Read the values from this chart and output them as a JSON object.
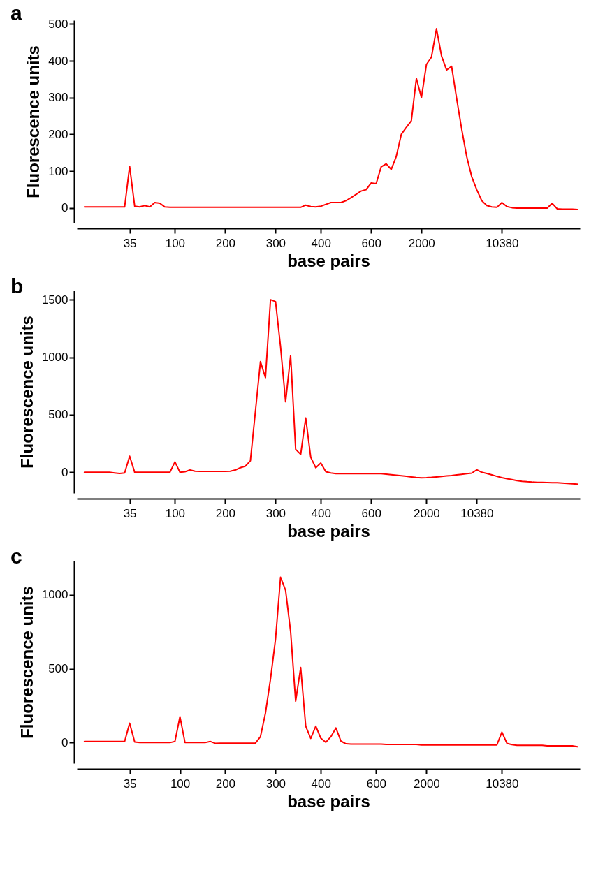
{
  "chart_data": [
    {
      "type": "line",
      "title": "a",
      "xlabel": "base pairs",
      "ylabel": "Fluorescence units",
      "ylim": [
        -40,
        510
      ],
      "yticks": [
        0,
        100,
        200,
        300,
        400,
        500
      ],
      "grid": false,
      "legend": false,
      "marker": "none",
      "line_style": "solid",
      "categories": [
        null,
        null,
        null,
        null,
        null,
        null,
        null,
        null,
        null,
        null,
        "35",
        null,
        null,
        null,
        null,
        null,
        null,
        null,
        null,
        "100",
        null,
        null,
        null,
        null,
        null,
        null,
        null,
        null,
        null,
        "200",
        null,
        null,
        null,
        null,
        null,
        null,
        null,
        null,
        null,
        "300",
        null,
        null,
        null,
        null,
        null,
        null,
        null,
        null,
        "400",
        null,
        null,
        null,
        null,
        null,
        null,
        null,
        null,
        null,
        "600",
        null,
        null,
        null,
        null,
        null,
        null,
        null,
        null,
        null,
        "2000",
        null,
        null,
        null,
        null,
        null,
        null,
        null,
        null,
        null,
        null,
        null,
        null,
        null,
        null,
        null,
        "10380",
        null,
        null,
        null,
        null,
        null,
        null,
        null,
        null,
        null,
        null,
        null,
        null,
        null,
        null,
        null
      ],
      "series": [
        {
          "color": "#ff0000",
          "values": [
            null,
            3,
            3,
            3,
            3,
            3,
            3,
            3,
            3,
            3,
            113,
            5,
            3,
            7,
            3,
            15,
            13,
            3,
            2,
            2,
            2,
            2,
            2,
            2,
            2,
            2,
            2,
            2,
            2,
            2,
            2,
            2,
            2,
            2,
            2,
            2,
            2,
            2,
            2,
            2,
            2,
            2,
            2,
            2,
            2,
            8,
            4,
            3,
            5,
            10,
            15,
            15,
            15,
            20,
            28,
            37,
            46,
            50,
            68,
            66,
            112,
            120,
            105,
            140,
            200,
            219,
            237,
            352,
            300,
            390,
            410,
            487,
            413,
            375,
            385,
            298,
            215,
            140,
            85,
            50,
            20,
            7,
            3,
            2,
            15,
            4,
            1,
            0,
            0,
            0,
            0,
            0,
            0,
            0,
            13,
            -2,
            -3,
            -3,
            -3,
            -4
          ]
        }
      ]
    },
    {
      "type": "line",
      "title": "b",
      "xlabel": "base pairs",
      "ylabel": "Fluorescence units",
      "ylim": [
        -180,
        1580
      ],
      "yticks": [
        0,
        500,
        1000,
        1500
      ],
      "grid": false,
      "legend": false,
      "marker": "none",
      "line_style": "solid",
      "categories": [
        null,
        null,
        null,
        null,
        null,
        null,
        null,
        null,
        null,
        null,
        "35",
        null,
        null,
        null,
        null,
        null,
        null,
        null,
        null,
        "100",
        null,
        null,
        null,
        null,
        null,
        null,
        null,
        null,
        null,
        "200",
        null,
        null,
        null,
        null,
        null,
        null,
        null,
        null,
        null,
        "300",
        null,
        null,
        null,
        null,
        null,
        null,
        null,
        null,
        "400",
        null,
        null,
        null,
        null,
        null,
        null,
        null,
        null,
        null,
        "600",
        null,
        null,
        null,
        null,
        null,
        null,
        null,
        null,
        null,
        null,
        "2000",
        null,
        null,
        null,
        null,
        null,
        null,
        null,
        null,
        null,
        "10380",
        null,
        null,
        null,
        null,
        null,
        null,
        null,
        null,
        null,
        null,
        null,
        null,
        null,
        null,
        null,
        null,
        null,
        null,
        null,
        null
      ],
      "series": [
        {
          "color": "#ff0000",
          "values": [
            null,
            0,
            0,
            0,
            0,
            0,
            0,
            -5,
            -10,
            -5,
            140,
            0,
            0,
            0,
            0,
            0,
            0,
            0,
            0,
            91,
            0,
            5,
            20,
            10,
            8,
            8,
            8,
            8,
            8,
            8,
            10,
            20,
            40,
            54,
            100,
            530,
            962,
            823,
            1500,
            1484,
            1090,
            613,
            1016,
            200,
            156,
            473,
            130,
            40,
            81,
            5,
            -5,
            -11,
            -11,
            -11,
            -11,
            -11,
            -11,
            -11,
            -11,
            -11,
            -12,
            -16,
            -20,
            -25,
            -30,
            -35,
            -40,
            -45,
            -48,
            -47,
            -44,
            -40,
            -36,
            -32,
            -28,
            -22,
            -17,
            -12,
            -7,
            22,
            0,
            -10,
            -22,
            -35,
            -46,
            -55,
            -63,
            -72,
            -78,
            -82,
            -85,
            -87,
            -88,
            -89,
            -90,
            -91,
            -93,
            -96,
            -100,
            -102
          ]
        }
      ]
    },
    {
      "type": "line",
      "title": "c",
      "xlabel": "base pairs",
      "ylabel": "Fluorescence units",
      "ylim": [
        -140,
        1230
      ],
      "yticks": [
        0,
        500,
        1000
      ],
      "grid": false,
      "legend": false,
      "marker": "none",
      "line_style": "solid",
      "categories": [
        null,
        null,
        null,
        null,
        null,
        null,
        null,
        null,
        null,
        null,
        "35",
        null,
        null,
        null,
        null,
        null,
        null,
        null,
        null,
        null,
        "100",
        null,
        null,
        null,
        null,
        null,
        null,
        null,
        null,
        "200",
        null,
        null,
        null,
        null,
        null,
        null,
        null,
        null,
        null,
        "300",
        null,
        null,
        null,
        null,
        null,
        null,
        null,
        null,
        "400",
        null,
        null,
        null,
        null,
        null,
        null,
        null,
        null,
        null,
        null,
        "600",
        null,
        null,
        null,
        null,
        null,
        null,
        null,
        null,
        null,
        "2000",
        null,
        null,
        null,
        null,
        null,
        null,
        null,
        null,
        null,
        null,
        null,
        null,
        null,
        null,
        "10380",
        null,
        null,
        null,
        null,
        null,
        null,
        null,
        null,
        null,
        null,
        null,
        null,
        null,
        null,
        null
      ],
      "series": [
        {
          "color": "#ff0000",
          "values": [
            null,
            8,
            8,
            8,
            8,
            8,
            8,
            8,
            8,
            8,
            131,
            4,
            0,
            0,
            0,
            0,
            0,
            0,
            0,
            8,
            175,
            0,
            0,
            0,
            0,
            0,
            8,
            -5,
            -4,
            -4,
            -4,
            -4,
            -4,
            -4,
            -4,
            -4,
            40,
            200,
            430,
            700,
            1119,
            1030,
            750,
            280,
            508,
            111,
            28,
            111,
            30,
            2,
            40,
            99,
            10,
            -8,
            -10,
            -10,
            -10,
            -10,
            -10,
            -10,
            -10,
            -12,
            -12,
            -12,
            -12,
            -12,
            -12,
            -12,
            -16,
            -16,
            -16,
            -16,
            -16,
            -16,
            -16,
            -16,
            -16,
            -16,
            -16,
            -16,
            -16,
            -16,
            -16,
            -16,
            71,
            -5,
            -14,
            -18,
            -18,
            -18,
            -18,
            -18,
            -18,
            -22,
            -22,
            -22,
            -22,
            -22,
            -22,
            -28
          ]
        }
      ]
    }
  ]
}
